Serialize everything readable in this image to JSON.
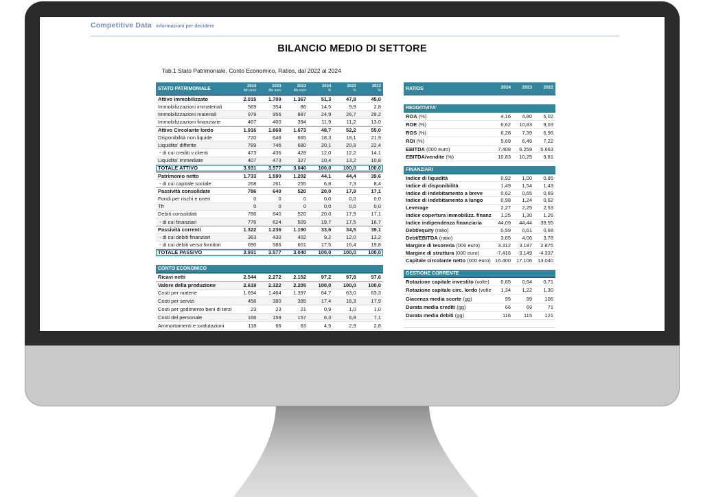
{
  "brand": {
    "name": "Competitive Data",
    "tagline": "informazioni per decidere",
    "color": "#7289BD"
  },
  "page": {
    "title": "BILANCIO MEDIO DI SETTORE",
    "subtitle": "Tab.1 Stato Patrimoniale, Conto Economico, Ratios, dal 2022 al 2024"
  },
  "colors": {
    "header_teal": "#31859C",
    "total_box_border": "#3D96AD",
    "monitor_bezel": "#2B2B2B",
    "monitor_chin": "#C9C9C9"
  },
  "stato_patrimoniale": {
    "header_label": "STATO PATRIMONIALE",
    "cols": [
      {
        "y": "2024",
        "u": "Mn euro"
      },
      {
        "y": "2023",
        "u": "Mn euro"
      },
      {
        "y": "2022",
        "u": "Mn euro"
      },
      {
        "y": "2024",
        "u": "%"
      },
      {
        "y": "2023",
        "u": "%"
      },
      {
        "y": "2022",
        "u": "%"
      }
    ],
    "rows": [
      {
        "label": "Attivo immobilizzato",
        "b": true,
        "v": [
          "2.015",
          "1.709",
          "1.367",
          "51,3",
          "47,8",
          "45,0"
        ]
      },
      {
        "label": "Immobilizzazioni immateriali",
        "v": [
          "569",
          "354",
          "86",
          "14,5",
          "9,9",
          "2,8"
        ]
      },
      {
        "label": "Immobilizzazioni materiali",
        "v": [
          "979",
          "956",
          "887",
          "24,9",
          "26,7",
          "29,2"
        ]
      },
      {
        "label": "Immobilizzazioni finanziarie",
        "v": [
          "467",
          "400",
          "394",
          "11,9",
          "11,2",
          "13,0"
        ]
      },
      {
        "label": "Attivo Circolante lordo",
        "b": true,
        "v": [
          "1.916",
          "1.868",
          "1.673",
          "48,7",
          "52,2",
          "55,0"
        ]
      },
      {
        "label": "Disponibilità non liquide",
        "v": [
          "720",
          "648",
          "665",
          "18,3",
          "18,1",
          "21,9"
        ]
      },
      {
        "label": "Liquidita' differite",
        "v": [
          "789",
          "746",
          "680",
          "20,1",
          "20,9",
          "22,4"
        ]
      },
      {
        "label": " - di cui crediti v.clienti",
        "v": [
          "473",
          "436",
          "428",
          "12,0",
          "12,2",
          "14,1"
        ]
      },
      {
        "label": "Liquidita' immediate",
        "v": [
          "407",
          "473",
          "327",
          "10,4",
          "13,2",
          "10,8"
        ]
      },
      {
        "label": "TOTALE ATTIVO",
        "b": true,
        "box": true,
        "v": [
          "3.931",
          "3.577",
          "3.040",
          "100,0",
          "100,0",
          "100,0"
        ]
      },
      {
        "label": "Patrimonio netto",
        "b": true,
        "v": [
          "1.733",
          "1.590",
          "1.202",
          "44,1",
          "44,4",
          "39,6"
        ]
      },
      {
        "label": " - di cui capitale sociale",
        "v": [
          "268",
          "261",
          "255",
          "6,8",
          "7,3",
          "8,4"
        ]
      },
      {
        "label": "Passività consolidate",
        "b": true,
        "v": [
          "786",
          "640",
          "520",
          "20,0",
          "17,9",
          "17,1"
        ]
      },
      {
        "label": "Fondi per rischi e oneri",
        "v": [
          "0",
          "0",
          "0",
          "0,0",
          "0,0",
          "0,0"
        ]
      },
      {
        "label": "Tfr",
        "v": [
          "0",
          "0",
          "0",
          "0,0",
          "0,0",
          "0,0"
        ]
      },
      {
        "label": "Debiti consolidati",
        "v": [
          "786",
          "640",
          "520",
          "20,0",
          "17,9",
          "17,1"
        ]
      },
      {
        "label": " - di cui finanziari",
        "v": [
          "776",
          "624",
          "509",
          "19,7",
          "17,5",
          "16,7"
        ]
      },
      {
        "label": "Passività correnti",
        "b": true,
        "v": [
          "1.322",
          "1.236",
          "1.190",
          "33,6",
          "34,5",
          "39,1"
        ]
      },
      {
        "label": " - di cui debiti finanziari",
        "v": [
          "363",
          "430",
          "402",
          "9,2",
          "12,0",
          "13,2"
        ]
      },
      {
        "label": " - di cui debiti verso fornitori",
        "v": [
          "690",
          "586",
          "601",
          "17,5",
          "16,4",
          "19,8"
        ]
      },
      {
        "label": "TOTALE PASSIVO",
        "b": true,
        "box": true,
        "v": [
          "3.931",
          "3.577",
          "3.040",
          "100,0",
          "100,0",
          "100,0"
        ]
      }
    ]
  },
  "conto_economico": {
    "header_label": "CONTO ECONOMICO",
    "rows": [
      {
        "label": "Ricavi netti",
        "b": true,
        "v": [
          "2.544",
          "2.272",
          "2.152",
          "97,2",
          "97,8",
          "97,6"
        ]
      },
      {
        "label": "Valore della produzione",
        "b": true,
        "v": [
          "2.619",
          "2.322",
          "2.205",
          "100,0",
          "100,0",
          "100,0"
        ]
      },
      {
        "label": "Costi per materie",
        "v": [
          "1.694",
          "1.464",
          "1.397",
          "64,7",
          "63,0",
          "63,3"
        ]
      },
      {
        "label": "Costi per servizi",
        "v": [
          "456",
          "380",
          "395",
          "17,4",
          "16,3",
          "17,9"
        ]
      },
      {
        "label": "Costi per godimento beni di terzi",
        "v": [
          "23",
          "23",
          "21",
          "0,9",
          "1,0",
          "1,0"
        ]
      },
      {
        "label": "Costi del personale",
        "v": [
          "166",
          "159",
          "157",
          "6,3",
          "6,8",
          "7,1"
        ]
      },
      {
        "label": "Ammortamenti e svalutazioni",
        "v": [
          "118",
          "66",
          "63",
          "4,5",
          "2,9",
          "2,8"
        ]
      }
    ]
  },
  "ratios": {
    "header_label": "RATIOS",
    "cols": [
      {
        "y": "2024"
      },
      {
        "y": "2023"
      },
      {
        "y": "2022"
      }
    ],
    "sections": [
      {
        "label": "REDDITIVITA'",
        "rows": [
          {
            "label": "ROA",
            "unit": "(%)",
            "v": [
              "4,16",
              "4,80",
              "5,02"
            ]
          },
          {
            "label": "ROE",
            "unit": "(%)",
            "v": [
              "6,62",
              "10,83",
              "9,03"
            ]
          },
          {
            "label": "ROS",
            "unit": "(%)",
            "v": [
              "6,28",
              "7,39",
              "6,96"
            ]
          },
          {
            "label": "ROI",
            "unit": "(%)",
            "v": [
              "5,69",
              "6,49",
              "7,22"
            ]
          },
          {
            "label": "EBITDA",
            "unit": "(000 euro)",
            "v": [
              "7.408",
              "6.259",
              "5.663"
            ]
          },
          {
            "label": "EBITDA/vendite",
            "unit": "(%)",
            "v": [
              "10,83",
              "10,25",
              "9,81"
            ]
          }
        ]
      },
      {
        "label": "FINANZIARI",
        "rows": [
          {
            "label": "Indice di liquidità",
            "v": [
              "0,92",
              "1,00",
              "0,85"
            ]
          },
          {
            "label": "Indice di disponibilità",
            "v": [
              "1,49",
              "1,54",
              "1,43"
            ]
          },
          {
            "label": "Indice di indebitamento a breve",
            "v": [
              "0,62",
              "0,65",
              "0,69"
            ]
          },
          {
            "label": "Indice di indebitamento a lungo",
            "v": [
              "0,98",
              "1,24",
              "0,62"
            ]
          },
          {
            "label": "Leverage",
            "v": [
              "2,27",
              "2,25",
              "2,53"
            ]
          },
          {
            "label": "Indice copertura immobilizz. finanziarie",
            "v": [
              "1,25",
              "1,30",
              "1,26"
            ]
          },
          {
            "label": "Indice indipendenza finanziaria",
            "v": [
              "44,09",
              "44,44",
              "39,55"
            ]
          },
          {
            "label": "Debt/equity",
            "unit": "(ratio)",
            "v": [
              "0,59",
              "0,61",
              "0,68"
            ]
          },
          {
            "label": "Debt/EBITDA",
            "unit": "(ratio)",
            "v": [
              "3,65",
              "4,06",
              "3,78"
            ]
          },
          {
            "label": "Margine di tesoreria",
            "unit": "(000 euro)",
            "v": [
              "3.312",
              "3.187",
              "2.875"
            ]
          },
          {
            "label": "Margine di struttura",
            "unit": "(000 euro)",
            "v": [
              "-7.416",
              "-3.149",
              "-4.337"
            ]
          },
          {
            "label": "Capitale circolante netto",
            "unit": "(000 euro)",
            "v": [
              "16.400",
              "17.106",
              "13.040"
            ]
          }
        ]
      },
      {
        "label": "GESTIONE CORRENTE",
        "rows": [
          {
            "label": "Rotazione capitale investito",
            "unit": "(volte)",
            "v": [
              "0,65",
              "0,64",
              "0,71"
            ]
          },
          {
            "label": "Rotazione capitale circ. lordo",
            "unit": "(volte)",
            "v": [
              "1,34",
              "1,22",
              "1,30"
            ]
          },
          {
            "label": "Giacenza media scorte",
            "unit": "(gg)",
            "v": [
              "95",
              "99",
              "106"
            ]
          },
          {
            "label": "Durata media crediti",
            "unit": "(gg)",
            "v": [
              "66",
              "69",
              "71"
            ]
          },
          {
            "label": "Durata media debiti",
            "unit": "(gg)",
            "v": [
              "116",
              "115",
              "121"
            ]
          }
        ]
      }
    ]
  }
}
